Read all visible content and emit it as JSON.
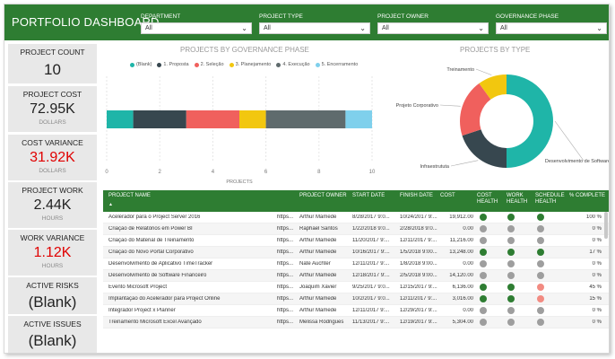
{
  "header": {
    "title": "PORTFOLIO DASHBOARD",
    "filters": [
      {
        "label": "DEPARTMENT",
        "value": "All"
      },
      {
        "label": "PROJECT TYPE",
        "value": "All"
      },
      {
        "label": "PROJECT OWNER",
        "value": "All"
      },
      {
        "label": "GOVERNANCE PHASE",
        "value": "All"
      }
    ]
  },
  "kpis": [
    {
      "label": "PROJECT COUNT",
      "value": "10",
      "unit": ""
    },
    {
      "label": "PROJECT COST",
      "value": "72.95K",
      "unit": "DOLLARS"
    },
    {
      "label": "COST VARIANCE",
      "value": "31.92K",
      "unit": "DOLLARS"
    },
    {
      "label": "PROJECT WORK",
      "value": "2.44K",
      "unit": "HOURS"
    },
    {
      "label": "WORK VARIANCE",
      "value": "1.12K",
      "unit": "HOURS"
    },
    {
      "label": "ACTIVE RISKS",
      "value": "(Blank)",
      "unit": ""
    },
    {
      "label": "ACTIVE ISSUES",
      "value": "(Blank)",
      "unit": ""
    }
  ],
  "colors": {
    "header_green": "#2e7d32",
    "kpi_red": "#e00000",
    "status_green": "#2e7d32",
    "status_gray": "#9e9e9e",
    "status_pink": "#f28b82"
  },
  "chart_data": [
    {
      "type": "bar",
      "title": "PROJECTS BY GOVERNANCE PHASE",
      "xlabel": "PROJECTS",
      "orientation": "horizontal-stacked",
      "xlim": [
        0,
        10
      ],
      "xticks": [
        "0",
        "2",
        "4",
        "6",
        "8",
        "10"
      ],
      "legend_position": "top",
      "series": [
        {
          "name": "(Blank)",
          "values": [
            1
          ],
          "color": "#1fb5a8"
        },
        {
          "name": "1. Proposta",
          "values": [
            2
          ],
          "color": "#37474f"
        },
        {
          "name": "2. Seleção",
          "values": [
            2
          ],
          "color": "#f0605d"
        },
        {
          "name": "3. Planejamento",
          "values": [
            1
          ],
          "color": "#f2c70f"
        },
        {
          "name": "4. Execução",
          "values": [
            3
          ],
          "color": "#5f6b6d"
        },
        {
          "name": "5. Encerramento",
          "values": [
            1
          ],
          "color": "#7fd0ec"
        }
      ]
    },
    {
      "type": "pie",
      "title": "PROJECTS BY TYPE",
      "donut": true,
      "slices": [
        {
          "label": "Desenvolvimento de Software",
          "value": 5,
          "color": "#1fb5a8"
        },
        {
          "label": "Infraestrututa",
          "value": 2,
          "color": "#37474f"
        },
        {
          "label": "Projeto Corporativo",
          "value": 2,
          "color": "#f0605d"
        },
        {
          "label": "Treinamento",
          "value": 1,
          "color": "#f2c70f"
        }
      ]
    }
  ],
  "table": {
    "columns": [
      "PROJECT NAME",
      "PROJECT OWNER",
      "START DATE",
      "FINISH DATE",
      "COST",
      "COST HEALTH",
      "WORK HEALTH",
      "SCHEDULE HEALTH",
      "% COMPLETE"
    ],
    "sort_indicator": "▲",
    "rows": [
      {
        "name": "Acelerador para o Project Server 2016",
        "link": "https...",
        "owner": "Arthur Mamede",
        "start": "8/28/2017 9:0...",
        "finish": "10/24/2017 9:...",
        "cost": "19,912.00",
        "ch": "green",
        "wh": "green",
        "sh": "green",
        "pct": "100 %"
      },
      {
        "name": "Criação de Relatórios em Power BI",
        "link": "https...",
        "owner": "Raphael Santos",
        "start": "1/22/2018 9:0...",
        "finish": "2/28/2018 9:0...",
        "cost": "0.00",
        "ch": "gray",
        "wh": "gray",
        "sh": "gray",
        "pct": "0 %"
      },
      {
        "name": "Criação do Material de Treinamento",
        "link": "https...",
        "owner": "Arthur Mamede",
        "start": "11/20/2017 9:...",
        "finish": "12/11/2017 9:...",
        "cost": "11,216.00",
        "ch": "gray",
        "wh": "gray",
        "sh": "gray",
        "pct": "0 %"
      },
      {
        "name": "Criação do Novo Portal Corporativo",
        "link": "https...",
        "owner": "Arthur Mamede",
        "start": "10/16/2017 9:...",
        "finish": "1/5/2018 9:00...",
        "cost": "13,248.00",
        "ch": "green",
        "wh": "green",
        "sh": "green",
        "pct": "17 %"
      },
      {
        "name": "Desenvolvimento de Aplicativo TimeTracker",
        "link": "https...",
        "owner": "Nate Auchter",
        "start": "12/11/2017 9:...",
        "finish": "1/8/2018 9:00...",
        "cost": "0.00",
        "ch": "gray",
        "wh": "gray",
        "sh": "gray",
        "pct": "0 %"
      },
      {
        "name": "Desenvolvimento de Software Financeiro",
        "link": "https...",
        "owner": "Arthur Mamede",
        "start": "12/18/2017 9:...",
        "finish": "2/5/2018 9:00...",
        "cost": "14,120.00",
        "ch": "gray",
        "wh": "gray",
        "sh": "gray",
        "pct": "0 %"
      },
      {
        "name": "Evento Microsoft Project",
        "link": "https...",
        "owner": "Joaquim Xavier",
        "start": "9/25/2017 9:0...",
        "finish": "12/15/2017 9:...",
        "cost": "6,136.00",
        "ch": "green",
        "wh": "green",
        "sh": "pink",
        "pct": "45 %"
      },
      {
        "name": "Implantação do Acelerador para Project Online",
        "link": "https...",
        "owner": "Arthur Mamede",
        "start": "10/2/2017 9:0...",
        "finish": "12/11/2017 9:...",
        "cost": "3,016.00",
        "ch": "green",
        "wh": "green",
        "sh": "pink",
        "pct": "15 %"
      },
      {
        "name": "Integrador Project x Planner",
        "link": "https...",
        "owner": "Arthur Mamede",
        "start": "12/11/2017 9:...",
        "finish": "12/29/2017 9:...",
        "cost": "0.00",
        "ch": "gray",
        "wh": "gray",
        "sh": "gray",
        "pct": "0 %"
      },
      {
        "name": "Treinamento Microsoft Excel Avançado",
        "link": "https...",
        "owner": "Melissa Rodrigues",
        "start": "11/13/2017 9:...",
        "finish": "12/19/2017 9:...",
        "cost": "5,304.00",
        "ch": "gray",
        "wh": "gray",
        "sh": "gray",
        "pct": "0 %"
      }
    ]
  }
}
